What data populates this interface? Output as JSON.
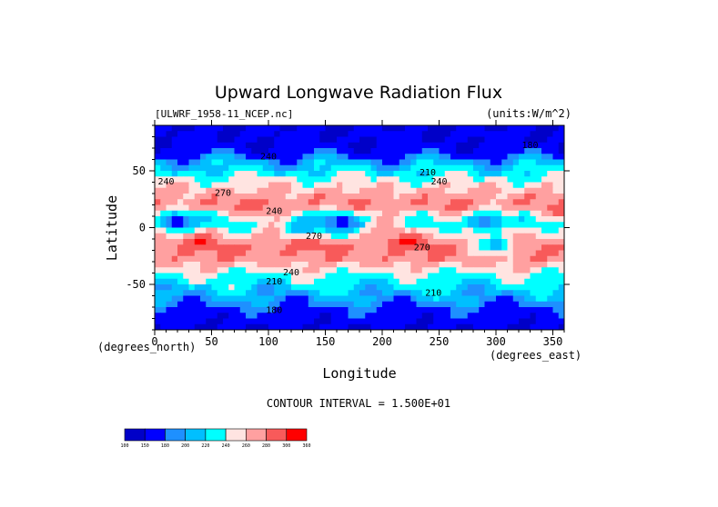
{
  "chart_data": {
    "type": "heatmap",
    "title": "Upward Longwave Radiation Flux",
    "subtitle_left": "[ULWRF_1958-11_NCEP.nc]",
    "subtitle_right": "(units:W/m^2)",
    "xlabel": "Longitude",
    "ylabel": "Latitude",
    "x_unit_label": "(degrees_east)",
    "y_unit_label": "(degrees_north)",
    "xlim": [
      0,
      360
    ],
    "ylim": [
      -90,
      90
    ],
    "x_ticks": [
      0,
      50,
      100,
      150,
      200,
      250,
      300,
      350
    ],
    "y_ticks": [
      -50,
      0,
      50
    ],
    "contour_interval_text": "CONTOUR INTERVAL = 1.500E+01",
    "contour_labels": [
      {
        "text": "240",
        "lon": 10,
        "lat": 38
      },
      {
        "text": "240",
        "lon": 100,
        "lat": 60
      },
      {
        "text": "270",
        "lon": 60,
        "lat": 28
      },
      {
        "text": "240",
        "lon": 105,
        "lat": 12
      },
      {
        "text": "210",
        "lon": 240,
        "lat": 46
      },
      {
        "text": "240",
        "lon": 250,
        "lat": 38
      },
      {
        "text": "270",
        "lon": 140,
        "lat": -10
      },
      {
        "text": "240",
        "lon": 120,
        "lat": -42
      },
      {
        "text": "210",
        "lon": 105,
        "lat": -50
      },
      {
        "text": "210",
        "lon": 245,
        "lat": -60
      },
      {
        "text": "180",
        "lon": 105,
        "lat": -75
      },
      {
        "text": "270",
        "lon": 235,
        "lat": -20
      },
      {
        "text": "180",
        "lon": 330,
        "lat": 70
      }
    ],
    "colorbar": {
      "levels": [
        100,
        150,
        180,
        200,
        220,
        240,
        260,
        280,
        300,
        360
      ],
      "colors": [
        "#0000c8",
        "#0000ff",
        "#1e90ff",
        "#00bfff",
        "#00ffff",
        "#ffe4e1",
        "#ffa0a0",
        "#f85a5a",
        "#ff0000"
      ]
    },
    "field": {
      "lat_bands": [
        {
          "lat": 90,
          "value": 150
        },
        {
          "lat": 70,
          "value": 160
        },
        {
          "lat": 55,
          "value": 210
        },
        {
          "lat": 35,
          "value": 260
        },
        {
          "lat": 20,
          "value": 280
        },
        {
          "lat": 5,
          "value": 240
        },
        {
          "lat": -15,
          "value": 285
        },
        {
          "lat": -30,
          "value": 270
        },
        {
          "lat": -42,
          "value": 240
        },
        {
          "lat": -52,
          "value": 220
        },
        {
          "lat": -62,
          "value": 200
        },
        {
          "lat": -72,
          "value": 175
        },
        {
          "lat": -90,
          "value": 150
        }
      ],
      "cold_spots": [
        {
          "lon": 20,
          "lat": 5,
          "value": 170
        },
        {
          "lon": 165,
          "lat": 5,
          "value": 170
        },
        {
          "lon": 290,
          "lat": 5,
          "value": 190
        },
        {
          "lon": 130,
          "lat": 0,
          "value": 200
        },
        {
          "lon": 300,
          "lat": -15,
          "value": 210
        }
      ]
    }
  }
}
